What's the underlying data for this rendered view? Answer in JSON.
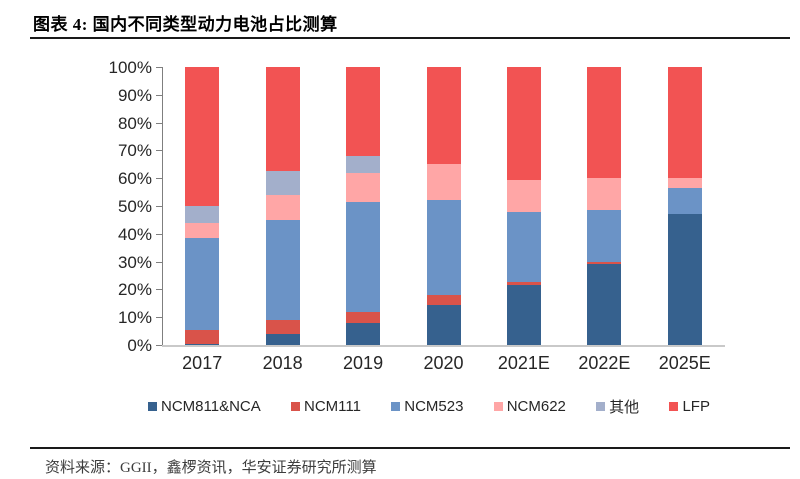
{
  "header": {
    "title": "图表 4:  国内不同类型动力电池占比测算"
  },
  "footer": {
    "source_label": "资料来源：",
    "source_text": "GGII，鑫椤资讯，华安证券研究所测算"
  },
  "chart_data": {
    "type": "bar",
    "stacked": true,
    "title": "国内不同类型动力电池占比测算",
    "xlabel": "",
    "ylabel": "",
    "ylim": [
      0,
      100
    ],
    "grid": false,
    "legend_position": "bottom",
    "ytick_labels": [
      "0%",
      "10%",
      "20%",
      "30%",
      "40%",
      "50%",
      "60%",
      "70%",
      "80%",
      "90%",
      "100%"
    ],
    "categories": [
      "2017",
      "2018",
      "2019",
      "2020",
      "2021E",
      "2022E",
      "2025E"
    ],
    "series": [
      {
        "name": "NCM811&NCA",
        "color": "#36618E",
        "values": [
          0.5,
          4,
          8,
          14.5,
          21.5,
          29,
          47
        ]
      },
      {
        "name": "NCM111",
        "color": "#D9534A",
        "values": [
          5,
          5,
          4,
          3.5,
          1,
          1,
          0
        ]
      },
      {
        "name": "NCM523",
        "color": "#6B93C6",
        "values": [
          33,
          36,
          39.5,
          34,
          25.5,
          18.5,
          9.5
        ]
      },
      {
        "name": "NCM622",
        "color": "#FFA6A6",
        "values": [
          5.5,
          9,
          10.5,
          13,
          11.5,
          11.5,
          3.5
        ]
      },
      {
        "name": "其他",
        "color": "#A3AFCB",
        "values": [
          6,
          8.5,
          6,
          0,
          0,
          0,
          0
        ]
      },
      {
        "name": "LFP",
        "color": "#F25353",
        "values": [
          50,
          37.5,
          32,
          35,
          40.5,
          40,
          40
        ]
      }
    ]
  }
}
